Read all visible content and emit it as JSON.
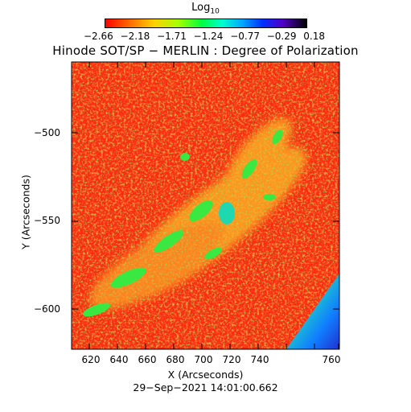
{
  "colorbar": {
    "label_main": "Log",
    "label_sub": "10",
    "ticks": [
      "−2.66",
      "−2.18",
      "−1.71",
      "−1.24",
      "−0.77",
      "−0.29",
      "0.18"
    ]
  },
  "title": "Hinode SOT/SP − MERLIN : Degree of Polarization",
  "axes": {
    "x_label": "X (Arcseconds)",
    "y_label": "Y (Arcseconds)",
    "x_ticks": [
      "620",
      "640",
      "660",
      "680",
      "700",
      "720",
      "740",
      "760"
    ],
    "y_ticks": [
      "−500",
      "−550",
      "−600"
    ]
  },
  "timestamp": "29−Sep−2021 14:01:00.662",
  "colors": {
    "background": "#ff3a1a",
    "field": "#ff2a10",
    "high": "#ffd020",
    "green": "#38e840",
    "cyan": "#20d8c0",
    "corner": "#1080ff"
  }
}
